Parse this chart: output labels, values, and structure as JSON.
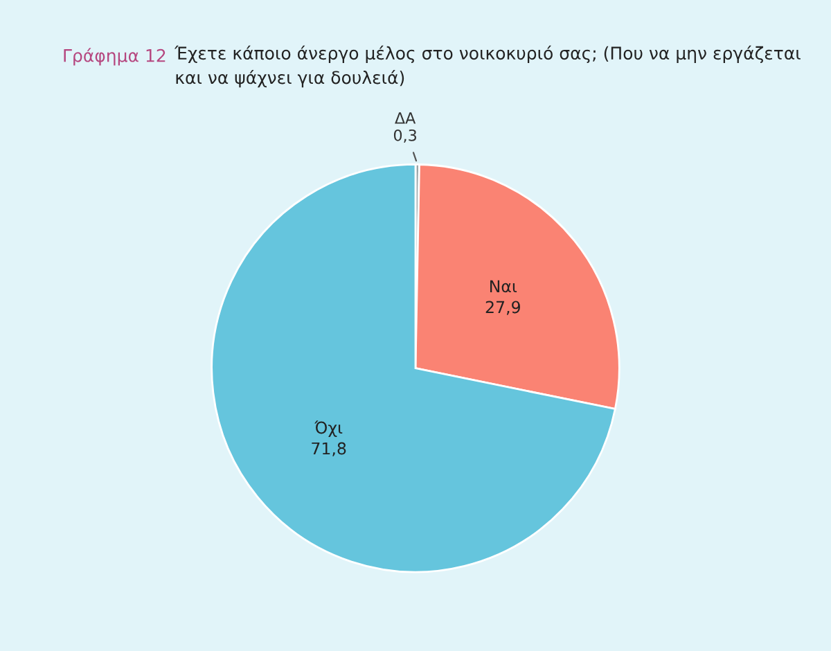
{
  "chart_data": {
    "type": "pie",
    "title": "Γράφημα 12",
    "subtitle": "Έχετε κάποιο άνεργο μέλος στο νοικοκυριό σας; (Που να μην εργάζεται και να ψάχνει για δουλειά)",
    "categories": [
      "ΔΑ",
      "Ναι",
      "Όχι"
    ],
    "values": [
      0.3,
      27.9,
      71.8
    ],
    "colors": [
      "#9aa5a8",
      "#fa8373",
      "#65c5dd"
    ],
    "value_labels": [
      "0,3",
      "27,9",
      "71,8"
    ]
  }
}
